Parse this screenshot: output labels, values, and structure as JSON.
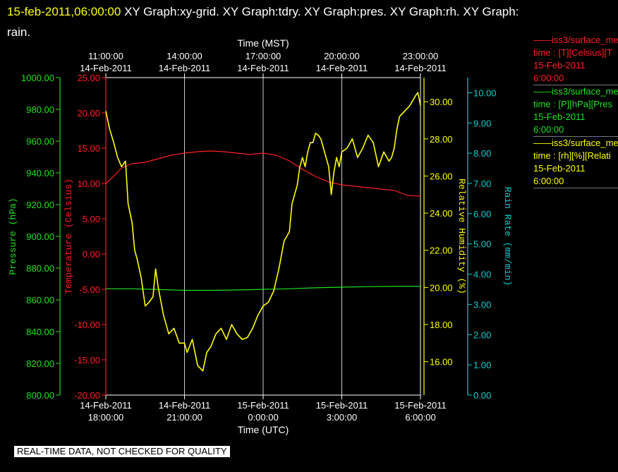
{
  "header": {
    "timestamp": "15-feb-2011,06:00:00",
    "title_rest": "XY Graph:xy-grid.  XY Graph:tdry.  XY Graph:pres.  XY Graph:rh.  XY Graph:",
    "title_wrap": "rain."
  },
  "legend": [
    {
      "line1": "iss3/surface_me",
      "line2": "time : [T][Celsius][T",
      "line3": "15-Feb-2011",
      "line4": "6:00:00",
      "color": "#ff2020"
    },
    {
      "line1": "iss3/surface_me",
      "line2": "time : [P][hPa][Pres",
      "line3": "15-Feb-2011",
      "line4": "6:00:00",
      "color": "#20e020"
    },
    {
      "line1": "iss3/surface_me",
      "line2": "time : [rh][%][Relati",
      "line3": "15-Feb-2011",
      "line4": "6:00:00",
      "color": "#ffff00"
    }
  ],
  "footer": "REAL-TIME DATA, NOT CHECKED FOR QUALITY",
  "chart_data": {
    "type": "line",
    "top_axis": {
      "label": "Time (MST)",
      "ticks": [
        [
          "11:00:00",
          "14-Feb-2011"
        ],
        [
          "14:00:00",
          "14-Feb-2011"
        ],
        [
          "17:00:00",
          "14-Feb-2011"
        ],
        [
          "20:00:00",
          "14-Feb-2011"
        ],
        [
          "23:00:00",
          "14-Feb-2011"
        ]
      ]
    },
    "bottom_axis": {
      "label": "Time (UTC)",
      "ticks": [
        [
          "14-Feb-2011",
          "18:00:00"
        ],
        [
          "14-Feb-2011",
          "21:00:00"
        ],
        [
          "15-Feb-2011",
          "0:00:00"
        ],
        [
          "15-Feb-2011",
          "3:00:00"
        ],
        [
          "15-Feb-2011",
          "6:00:00"
        ]
      ]
    },
    "x_hours_utc_since_18z": [
      0,
      3,
      6,
      9,
      12
    ],
    "xlim": [
      0,
      12
    ],
    "grid": "vertical",
    "y_axes": [
      {
        "key": "pres",
        "label": "Pressure (hPa)",
        "color": "#20e020",
        "ylim": [
          800,
          1000
        ],
        "ticks": [
          "800.00",
          "820.00",
          "840.00",
          "860.00",
          "880.00",
          "900.00",
          "920.00",
          "940.00",
          "960.00",
          "980.00",
          "1000.00"
        ]
      },
      {
        "key": "tdry",
        "label": "Temperature (Celsius)",
        "color": "#ff2020",
        "ylim": [
          -20,
          25
        ],
        "ticks": [
          "-20.00",
          "-15.00",
          "-10.00",
          "-5.00",
          "0.00",
          "5.00",
          "10.00",
          "15.00",
          "20.00",
          "25.00"
        ]
      },
      {
        "key": "rh",
        "label": "Relative Humidity (%)",
        "color": "#ffff00",
        "ylim": [
          14.2,
          31.3
        ],
        "ticks": [
          "16.00",
          "18.00",
          "20.00",
          "22.00",
          "24.00",
          "26.00",
          "28.00",
          "30.00"
        ]
      },
      {
        "key": "rain",
        "label": "Rain Rate (mm/min)",
        "color": "#00d0d0",
        "ylim": [
          0,
          10.5
        ],
        "ticks": [
          "0.00",
          "1.00",
          "2.00",
          "3.00",
          "4.00",
          "5.00",
          "6.00",
          "7.00",
          "8.00",
          "9.00",
          "10.00"
        ]
      }
    ],
    "series": [
      {
        "name": "iss3/surface_me",
        "axis": "tdry",
        "color": "#ff2020",
        "x": [
          0,
          0.3,
          0.6,
          1.0,
          1.5,
          2.0,
          2.5,
          3.0,
          3.5,
          4.0,
          4.5,
          5.0,
          5.5,
          6.0,
          6.5,
          7.0,
          7.5,
          8.0,
          8.5,
          9.0,
          9.5,
          10.0,
          10.5,
          11.0,
          11.5,
          12.0
        ],
        "y": [
          10.0,
          11.0,
          12.2,
          12.8,
          13.0,
          13.5,
          14.0,
          14.3,
          14.5,
          14.6,
          14.5,
          14.3,
          14.1,
          14.3,
          14.0,
          13.2,
          12.0,
          11.0,
          10.2,
          9.8,
          9.6,
          9.4,
          9.2,
          9.0,
          8.3,
          8.2
        ]
      },
      {
        "name": "iss3/surface_me",
        "axis": "pres",
        "color": "#20e020",
        "x": [
          0,
          1,
          2,
          3,
          4,
          5,
          6,
          7,
          8,
          9,
          10,
          11,
          12
        ],
        "y": [
          867.0,
          867.0,
          866.5,
          866.0,
          866.0,
          866.2,
          866.6,
          867.0,
          867.6,
          868.0,
          868.3,
          868.5,
          868.5
        ]
      },
      {
        "name": "iss3/surface_me",
        "axis": "rh",
        "color": "#ffff00",
        "x": [
          0,
          0.15,
          0.3,
          0.45,
          0.6,
          0.75,
          0.85,
          1.0,
          1.1,
          1.2,
          1.35,
          1.5,
          1.65,
          1.8,
          1.9,
          2.0,
          2.2,
          2.4,
          2.6,
          2.8,
          3.0,
          3.1,
          3.3,
          3.5,
          3.7,
          3.85,
          4.0,
          4.2,
          4.4,
          4.6,
          4.8,
          5.0,
          5.2,
          5.4,
          5.6,
          5.8,
          6.0,
          6.2,
          6.4,
          6.6,
          6.8,
          7.0,
          7.1,
          7.2,
          7.3,
          7.4,
          7.5,
          7.6,
          7.7,
          7.8,
          7.9,
          8.0,
          8.1,
          8.2,
          8.3,
          8.4,
          8.5,
          8.6,
          8.7,
          8.8,
          8.9,
          9.0,
          9.2,
          9.4,
          9.6,
          9.8,
          10.0,
          10.2,
          10.4,
          10.6,
          10.8,
          10.9,
          11.0,
          11.1,
          11.2,
          11.4,
          11.6,
          11.8,
          11.9,
          12.0
        ],
        "y": [
          29.5,
          28.5,
          27.8,
          27.0,
          26.5,
          26.8,
          24.5,
          23.5,
          22.0,
          21.5,
          20.5,
          19.0,
          19.2,
          19.5,
          21.0,
          20.0,
          18.5,
          17.5,
          17.8,
          17.0,
          17.0,
          16.5,
          17.2,
          15.8,
          15.5,
          16.5,
          16.8,
          17.5,
          17.8,
          17.2,
          18.0,
          17.5,
          17.2,
          17.3,
          17.8,
          18.5,
          19.0,
          19.2,
          19.8,
          21.0,
          22.5,
          23.0,
          24.5,
          25.0,
          25.5,
          26.5,
          27.0,
          26.5,
          27.3,
          27.8,
          27.8,
          28.3,
          28.2,
          28.0,
          27.5,
          27.0,
          26.5,
          25.0,
          26.2,
          27.0,
          26.5,
          27.3,
          27.5,
          28.0,
          27.0,
          27.5,
          28.2,
          27.8,
          26.5,
          27.3,
          26.8,
          27.0,
          27.5,
          28.5,
          29.2,
          29.5,
          29.8,
          30.3,
          30.5,
          29.8
        ]
      }
    ]
  }
}
